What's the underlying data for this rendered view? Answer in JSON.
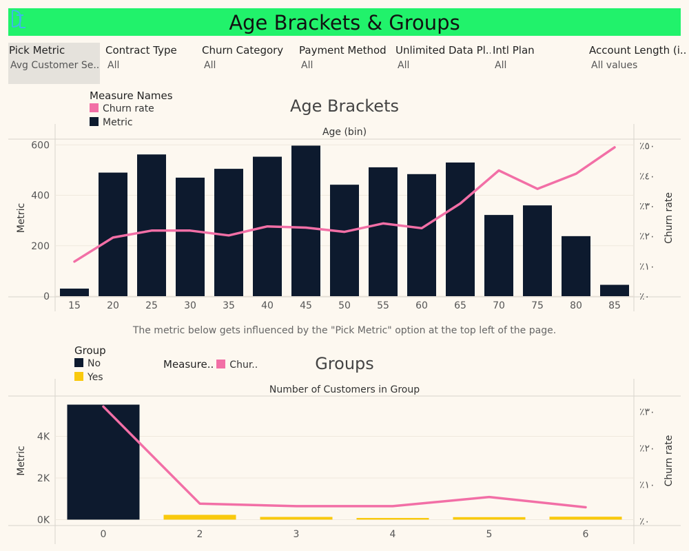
{
  "header": {
    "title": "Age Brackets & Groups",
    "logo_icon": "tableau-logo-icon"
  },
  "filters": [
    {
      "label": "Pick Metric",
      "value": "Avg Customer Se.."
    },
    {
      "label": "Contract Type",
      "value": "All"
    },
    {
      "label": "Churn Category",
      "value": "All"
    },
    {
      "label": "Payment Method",
      "value": "All"
    },
    {
      "label": "Unlimited Data Pl..",
      "value": "All"
    },
    {
      "label": "Intl Plan",
      "value": "All"
    },
    {
      "label": "Account Length (i..",
      "value": "All values"
    }
  ],
  "legend_top": {
    "title": "Measure Names",
    "items": [
      {
        "label": "Churn rate",
        "color": "#f26fa6"
      },
      {
        "label": "Metric",
        "color": "#0d1a2e"
      }
    ]
  },
  "note": "The metric below gets influenced by the \"Pick Metric\" option at the top left of the page.",
  "legend_groups": {
    "title": "Group",
    "items": [
      {
        "label": "No",
        "color": "#0d1a2e"
      },
      {
        "label": "Yes",
        "color": "#f9c90d"
      }
    ]
  },
  "legend_measure": {
    "title": "Measure..",
    "item": "Chur..",
    "color": "#f26fa6"
  },
  "chart_data": [
    {
      "type": "bar",
      "title": "Age Brackets",
      "xlabel": "Age (bin)",
      "ylabel": "Metric",
      "y2label": "Churn rate",
      "categories": [
        "15",
        "20",
        "25",
        "30",
        "35",
        "40",
        "45",
        "50",
        "55",
        "60",
        "65",
        "70",
        "75",
        "80",
        "85"
      ],
      "series": [
        {
          "name": "Metric",
          "type": "bar",
          "color": "#0d1a2e",
          "values": [
            30,
            490,
            562,
            470,
            505,
            553,
            597,
            442,
            511,
            484,
            530,
            322,
            360,
            238,
            45
          ]
        },
        {
          "name": "Churn rate",
          "type": "line",
          "axis": "right",
          "color": "#f26fa6",
          "values": [
            0.115,
            0.195,
            0.218,
            0.218,
            0.202,
            0.232,
            0.228,
            0.214,
            0.242,
            0.226,
            0.308,
            0.418,
            0.357,
            0.407,
            0.495
          ]
        }
      ],
      "ylim": [
        0,
        620
      ],
      "yticks": [
        "0",
        "200",
        "400",
        "600"
      ],
      "y2lim": [
        0,
        0.52
      ],
      "y2ticks": [
        "٪٠",
        "٪١٠",
        "٪٢٠",
        "٪٣٠",
        "٪٤٠",
        "٪٥٠"
      ]
    },
    {
      "type": "bar",
      "title": "Groups",
      "xlabel": "Number of Customers in Group",
      "ylabel": "Metric",
      "y2label": "Churn rate",
      "categories": [
        "0",
        "2",
        "3",
        "4",
        "5",
        "6"
      ],
      "series": [
        {
          "name": "Metric",
          "type": "bar",
          "values": [
            5520,
            230,
            130,
            80,
            120,
            140
          ],
          "colors": [
            "#0d1a2e",
            "#f9c90d",
            "#f9c90d",
            "#f9c90d",
            "#f9c90d",
            "#f9c90d"
          ]
        },
        {
          "name": "Churn rate",
          "type": "line",
          "axis": "right",
          "color": "#f26fa6",
          "values": [
            0.313,
            0.048,
            0.041,
            0.041,
            0.066,
            0.038
          ]
        }
      ],
      "ylim": [
        -250,
        5900
      ],
      "yticks": [
        "0K",
        "2K",
        "4K"
      ],
      "y2lim": [
        -0.01,
        0.34
      ],
      "y2ticks": [
        "٪٠",
        "٪١٠",
        "٪٢٠",
        "٪٣٠"
      ]
    }
  ]
}
